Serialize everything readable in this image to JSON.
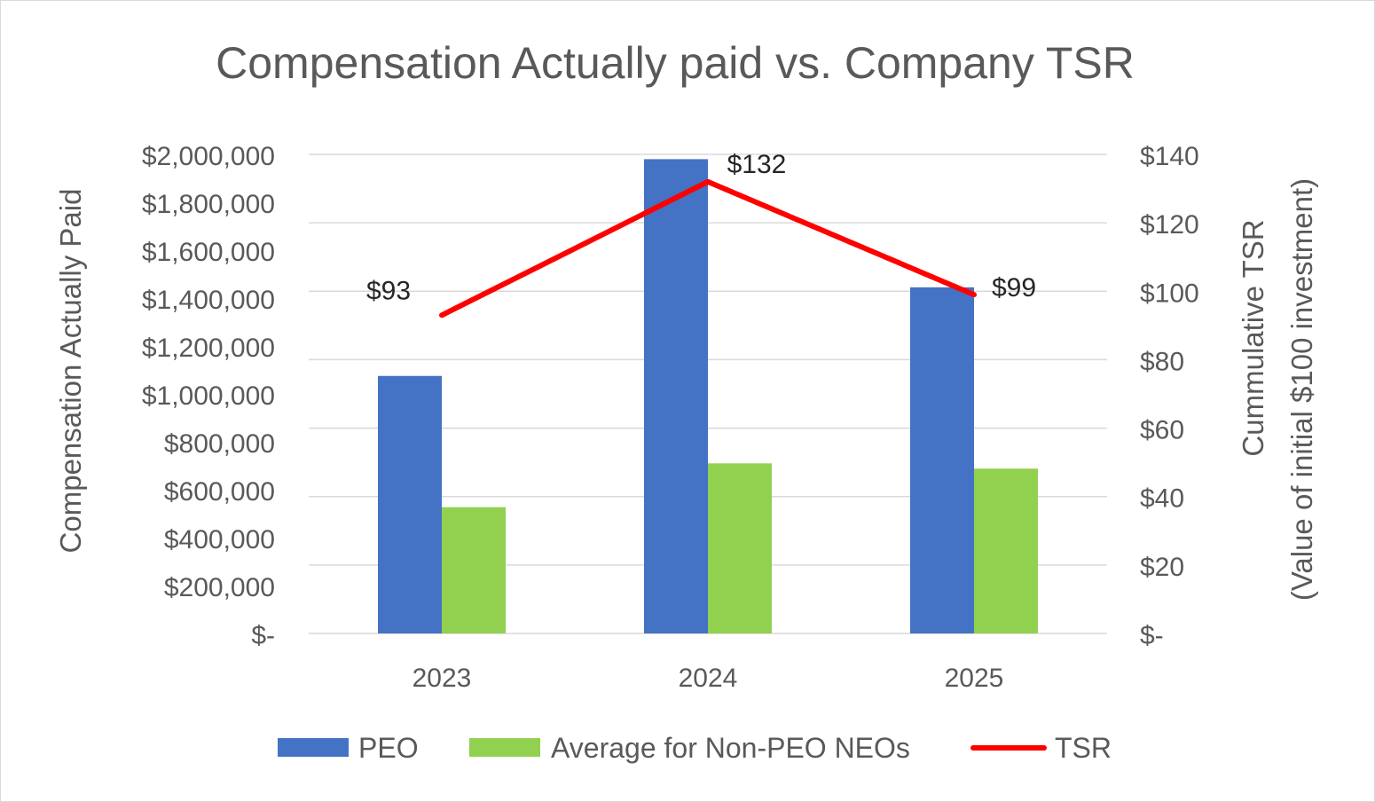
{
  "chart_data": {
    "type": "bar",
    "title": "Compensation Actually paid vs. Company TSR",
    "categories": [
      "2023",
      "2024",
      "2025"
    ],
    "series": [
      {
        "name": "PEO",
        "type": "bar",
        "axis": "left",
        "color": "#4472C4",
        "values": [
          1075000,
          1980000,
          1445000
        ]
      },
      {
        "name": "Average for Non-PEO NEOs",
        "type": "bar",
        "axis": "left",
        "color": "#92D050",
        "values": [
          527000,
          710000,
          688000
        ]
      },
      {
        "name": "TSR",
        "type": "line",
        "axis": "right",
        "color": "#FF0000",
        "values": [
          93,
          132,
          99
        ],
        "labels": [
          "$93",
          "$132",
          "$99"
        ]
      }
    ],
    "y_left": {
      "label": "Compensation Actually Paid",
      "ylim": [
        0,
        2000000
      ],
      "ticks": [
        "$-",
        "$200,000",
        "$400,000",
        "$600,000",
        "$800,000",
        "$1,000,000",
        "$1,200,000",
        "$1,400,000",
        "$1,600,000",
        "$1,800,000",
        "$2,000,000"
      ]
    },
    "y_right": {
      "label_line1": "Cummulative TSR",
      "label_line2": "(Value of initial $100 investment)",
      "ylim": [
        0,
        140
      ],
      "ticks": [
        "$-",
        "$20",
        "$40",
        "$60",
        "$80",
        "$100",
        "$120",
        "$140"
      ]
    },
    "grid": true,
    "legend_position": "bottom"
  }
}
